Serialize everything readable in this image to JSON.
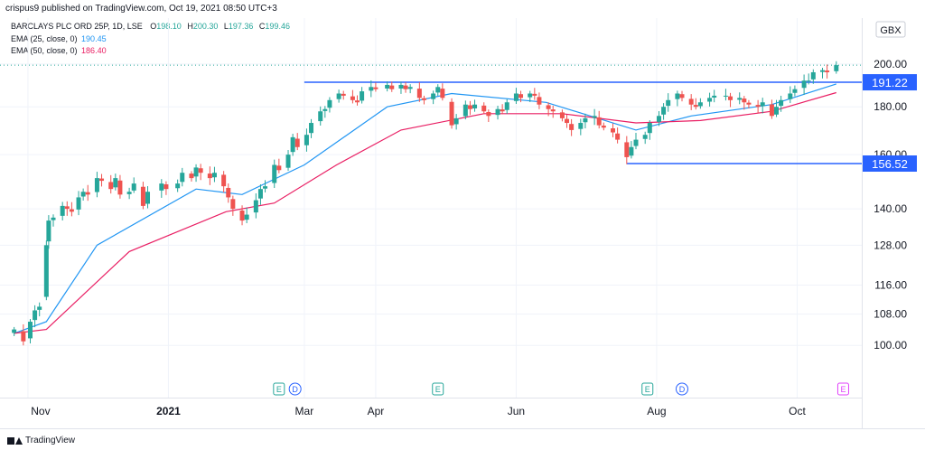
{
  "header": {
    "published": "crispus9 published on TradingView.com, Oct 19, 2021 08:50 UTC+3",
    "symbol": "BARCLAYS PLC ORD 25P, 1D, LSE",
    "ohlc": {
      "o_label": "O",
      "o": "198.10",
      "h_label": "H",
      "h": "200.30",
      "l_label": "L",
      "l": "197.36",
      "c_label": "C",
      "c": "199.46"
    },
    "ema25_label": "EMA (25, close, 0)",
    "ema25_value": "190.45",
    "ema50_label": "EMA (50, close, 0)",
    "ema50_value": "186.40"
  },
  "currency": "GBX",
  "footer": {
    "brand": "TradingView"
  },
  "colors": {
    "up": "#26a69a",
    "down": "#ef5350",
    "ema25": "#2196f3",
    "ema50": "#e91e63",
    "hline": "#2962ff",
    "label_bg": "#2962ff",
    "grid": "#f0f3fa",
    "axis_text": "#131722"
  },
  "chart_data": {
    "type": "candlestick",
    "title": "BARCLAYS PLC ORD 25P, 1D, LSE",
    "scale": "log",
    "ylim": [
      94,
      204
    ],
    "y_ticks": [
      "100.00",
      "108.00",
      "116.00",
      "128.00",
      "140.00",
      "160.00",
      "180.00",
      "200.00"
    ],
    "x_ticks": [
      "Nov",
      "2021",
      "Mar",
      "Apr",
      "Jun",
      "Aug",
      "Oct"
    ],
    "price_labels": [
      "191.22",
      "156.52"
    ],
    "horizontal_lines": [
      {
        "value": 191.22,
        "from": "2021-03-01",
        "to": "end"
      },
      {
        "value": 156.52,
        "from": "2021-07-19",
        "to": "end"
      }
    ],
    "event_markers": [
      {
        "type": "E",
        "date": "2021-02-18"
      },
      {
        "type": "D",
        "date": "2021-02-25"
      },
      {
        "type": "E",
        "date": "2021-04-28"
      },
      {
        "type": "E",
        "date": "2021-07-28"
      },
      {
        "type": "D",
        "date": "2021-08-12"
      },
      {
        "type": "E",
        "date": "2021-10-21"
      }
    ],
    "series": [
      {
        "name": "Price",
        "close_points": [
          [
            "2020-10-26",
            104
          ],
          [
            "2020-10-30",
            101
          ],
          [
            "2020-11-02",
            106
          ],
          [
            "2020-11-04",
            109
          ],
          [
            "2020-11-06",
            110
          ],
          [
            "2020-11-09",
            128
          ],
          [
            "2020-11-10",
            136
          ],
          [
            "2020-11-12",
            137
          ],
          [
            "2020-11-16",
            141
          ],
          [
            "2020-11-18",
            140
          ],
          [
            "2020-11-20",
            139
          ],
          [
            "2020-11-23",
            144
          ],
          [
            "2020-11-25",
            146
          ],
          [
            "2020-11-27",
            145
          ],
          [
            "2020-12-01",
            151
          ],
          [
            "2020-12-03",
            150
          ],
          [
            "2020-12-07",
            147
          ],
          [
            "2020-12-09",
            151
          ],
          [
            "2020-12-11",
            145
          ],
          [
            "2020-12-15",
            146
          ],
          [
            "2020-12-17",
            149
          ],
          [
            "2020-12-21",
            141
          ],
          [
            "2020-12-23",
            146
          ],
          [
            "2020-12-29",
            149
          ],
          [
            "2020-12-31",
            147
          ],
          [
            "2021-01-05",
            149
          ],
          [
            "2021-01-07",
            153
          ],
          [
            "2021-01-11",
            151
          ],
          [
            "2021-01-13",
            155
          ],
          [
            "2021-01-15",
            153
          ],
          [
            "2021-01-19",
            151
          ],
          [
            "2021-01-21",
            153
          ],
          [
            "2021-01-25",
            148
          ],
          [
            "2021-01-27",
            144
          ],
          [
            "2021-01-29",
            140
          ],
          [
            "2021-02-02",
            136
          ],
          [
            "2021-02-04",
            138
          ],
          [
            "2021-02-08",
            143
          ],
          [
            "2021-02-10",
            147
          ],
          [
            "2021-02-12",
            148
          ],
          [
            "2021-02-16",
            156
          ],
          [
            "2021-02-18",
            154
          ],
          [
            "2021-02-22",
            160
          ],
          [
            "2021-02-24",
            167
          ],
          [
            "2021-02-26",
            163
          ],
          [
            "2021-03-02",
            168
          ],
          [
            "2021-03-04",
            173
          ],
          [
            "2021-03-08",
            178
          ],
          [
            "2021-03-10",
            179
          ],
          [
            "2021-03-12",
            183
          ],
          [
            "2021-03-16",
            186
          ],
          [
            "2021-03-18",
            185
          ],
          [
            "2021-03-22",
            183
          ],
          [
            "2021-03-24",
            182
          ],
          [
            "2021-03-26",
            187
          ],
          [
            "2021-03-30",
            189
          ],
          [
            "2021-04-01",
            188
          ],
          [
            "2021-04-06",
            190
          ],
          [
            "2021-04-08",
            188
          ],
          [
            "2021-04-12",
            190
          ],
          [
            "2021-04-14",
            188
          ],
          [
            "2021-04-16",
            189
          ],
          [
            "2021-04-20",
            184
          ],
          [
            "2021-04-22",
            183
          ],
          [
            "2021-04-26",
            186
          ],
          [
            "2021-04-28",
            189
          ],
          [
            "2021-04-30",
            184
          ],
          [
            "2021-05-04",
            172
          ],
          [
            "2021-05-06",
            175
          ],
          [
            "2021-05-10",
            181
          ],
          [
            "2021-05-12",
            179
          ],
          [
            "2021-05-14",
            181
          ],
          [
            "2021-05-18",
            178
          ],
          [
            "2021-05-20",
            176
          ],
          [
            "2021-05-24",
            179
          ],
          [
            "2021-05-26",
            178
          ],
          [
            "2021-05-28",
            182
          ],
          [
            "2021-06-01",
            186
          ],
          [
            "2021-06-03",
            184
          ],
          [
            "2021-06-07",
            186
          ],
          [
            "2021-06-09",
            185
          ],
          [
            "2021-06-11",
            181
          ],
          [
            "2021-06-15",
            179
          ],
          [
            "2021-06-17",
            178
          ],
          [
            "2021-06-21",
            175
          ],
          [
            "2021-06-23",
            173
          ],
          [
            "2021-06-25",
            170
          ],
          [
            "2021-06-29",
            173
          ],
          [
            "2021-07-01",
            175
          ],
          [
            "2021-07-05",
            176
          ],
          [
            "2021-07-07",
            172
          ],
          [
            "2021-07-09",
            171
          ],
          [
            "2021-07-13",
            169
          ],
          [
            "2021-07-15",
            166
          ],
          [
            "2021-07-19",
            159
          ],
          [
            "2021-07-21",
            163
          ],
          [
            "2021-07-23",
            166
          ],
          [
            "2021-07-27",
            168
          ],
          [
            "2021-07-29",
            173
          ],
          [
            "2021-08-02",
            176
          ],
          [
            "2021-08-04",
            180
          ],
          [
            "2021-08-06",
            183
          ],
          [
            "2021-08-10",
            186
          ],
          [
            "2021-08-12",
            184
          ],
          [
            "2021-08-16",
            181
          ],
          [
            "2021-08-18",
            180
          ],
          [
            "2021-08-20",
            182
          ],
          [
            "2021-08-24",
            184
          ],
          [
            "2021-08-26",
            185
          ],
          [
            "2021-08-31",
            185
          ],
          [
            "2021-09-02",
            183
          ],
          [
            "2021-09-06",
            184
          ],
          [
            "2021-09-08",
            182
          ],
          [
            "2021-09-10",
            181
          ],
          [
            "2021-09-14",
            180
          ],
          [
            "2021-09-16",
            182
          ],
          [
            "2021-09-20",
            176
          ],
          [
            "2021-09-22",
            180
          ],
          [
            "2021-09-24",
            183
          ],
          [
            "2021-09-28",
            186
          ],
          [
            "2021-09-30",
            188
          ],
          [
            "2021-10-04",
            192
          ],
          [
            "2021-10-06",
            192
          ],
          [
            "2021-10-08",
            196
          ],
          [
            "2021-10-12",
            197
          ],
          [
            "2021-10-14",
            196
          ],
          [
            "2021-10-18",
            199.46
          ]
        ]
      },
      {
        "name": "EMA (25, close, 0)",
        "points": [
          [
            "2020-10-26",
            103
          ],
          [
            "2020-11-09",
            106
          ],
          [
            "2020-12-01",
            128
          ],
          [
            "2021-01-13",
            147
          ],
          [
            "2021-02-02",
            145
          ],
          [
            "2021-03-01",
            156
          ],
          [
            "2021-04-06",
            180
          ],
          [
            "2021-05-04",
            186
          ],
          [
            "2021-06-14",
            182
          ],
          [
            "2021-07-23",
            170
          ],
          [
            "2021-08-16",
            176
          ],
          [
            "2021-09-20",
            181
          ],
          [
            "2021-10-18",
            190.45
          ]
        ]
      },
      {
        "name": "EMA (50, close, 0)",
        "points": [
          [
            "2020-10-26",
            103
          ],
          [
            "2020-11-09",
            104
          ],
          [
            "2020-12-15",
            126
          ],
          [
            "2021-01-26",
            139
          ],
          [
            "2021-02-16",
            142
          ],
          [
            "2021-03-15",
            156
          ],
          [
            "2021-04-12",
            170
          ],
          [
            "2021-05-18",
            177
          ],
          [
            "2021-06-21",
            177
          ],
          [
            "2021-07-23",
            173
          ],
          [
            "2021-08-20",
            174
          ],
          [
            "2021-09-20",
            178
          ],
          [
            "2021-10-18",
            186.4
          ]
        ]
      }
    ]
  }
}
